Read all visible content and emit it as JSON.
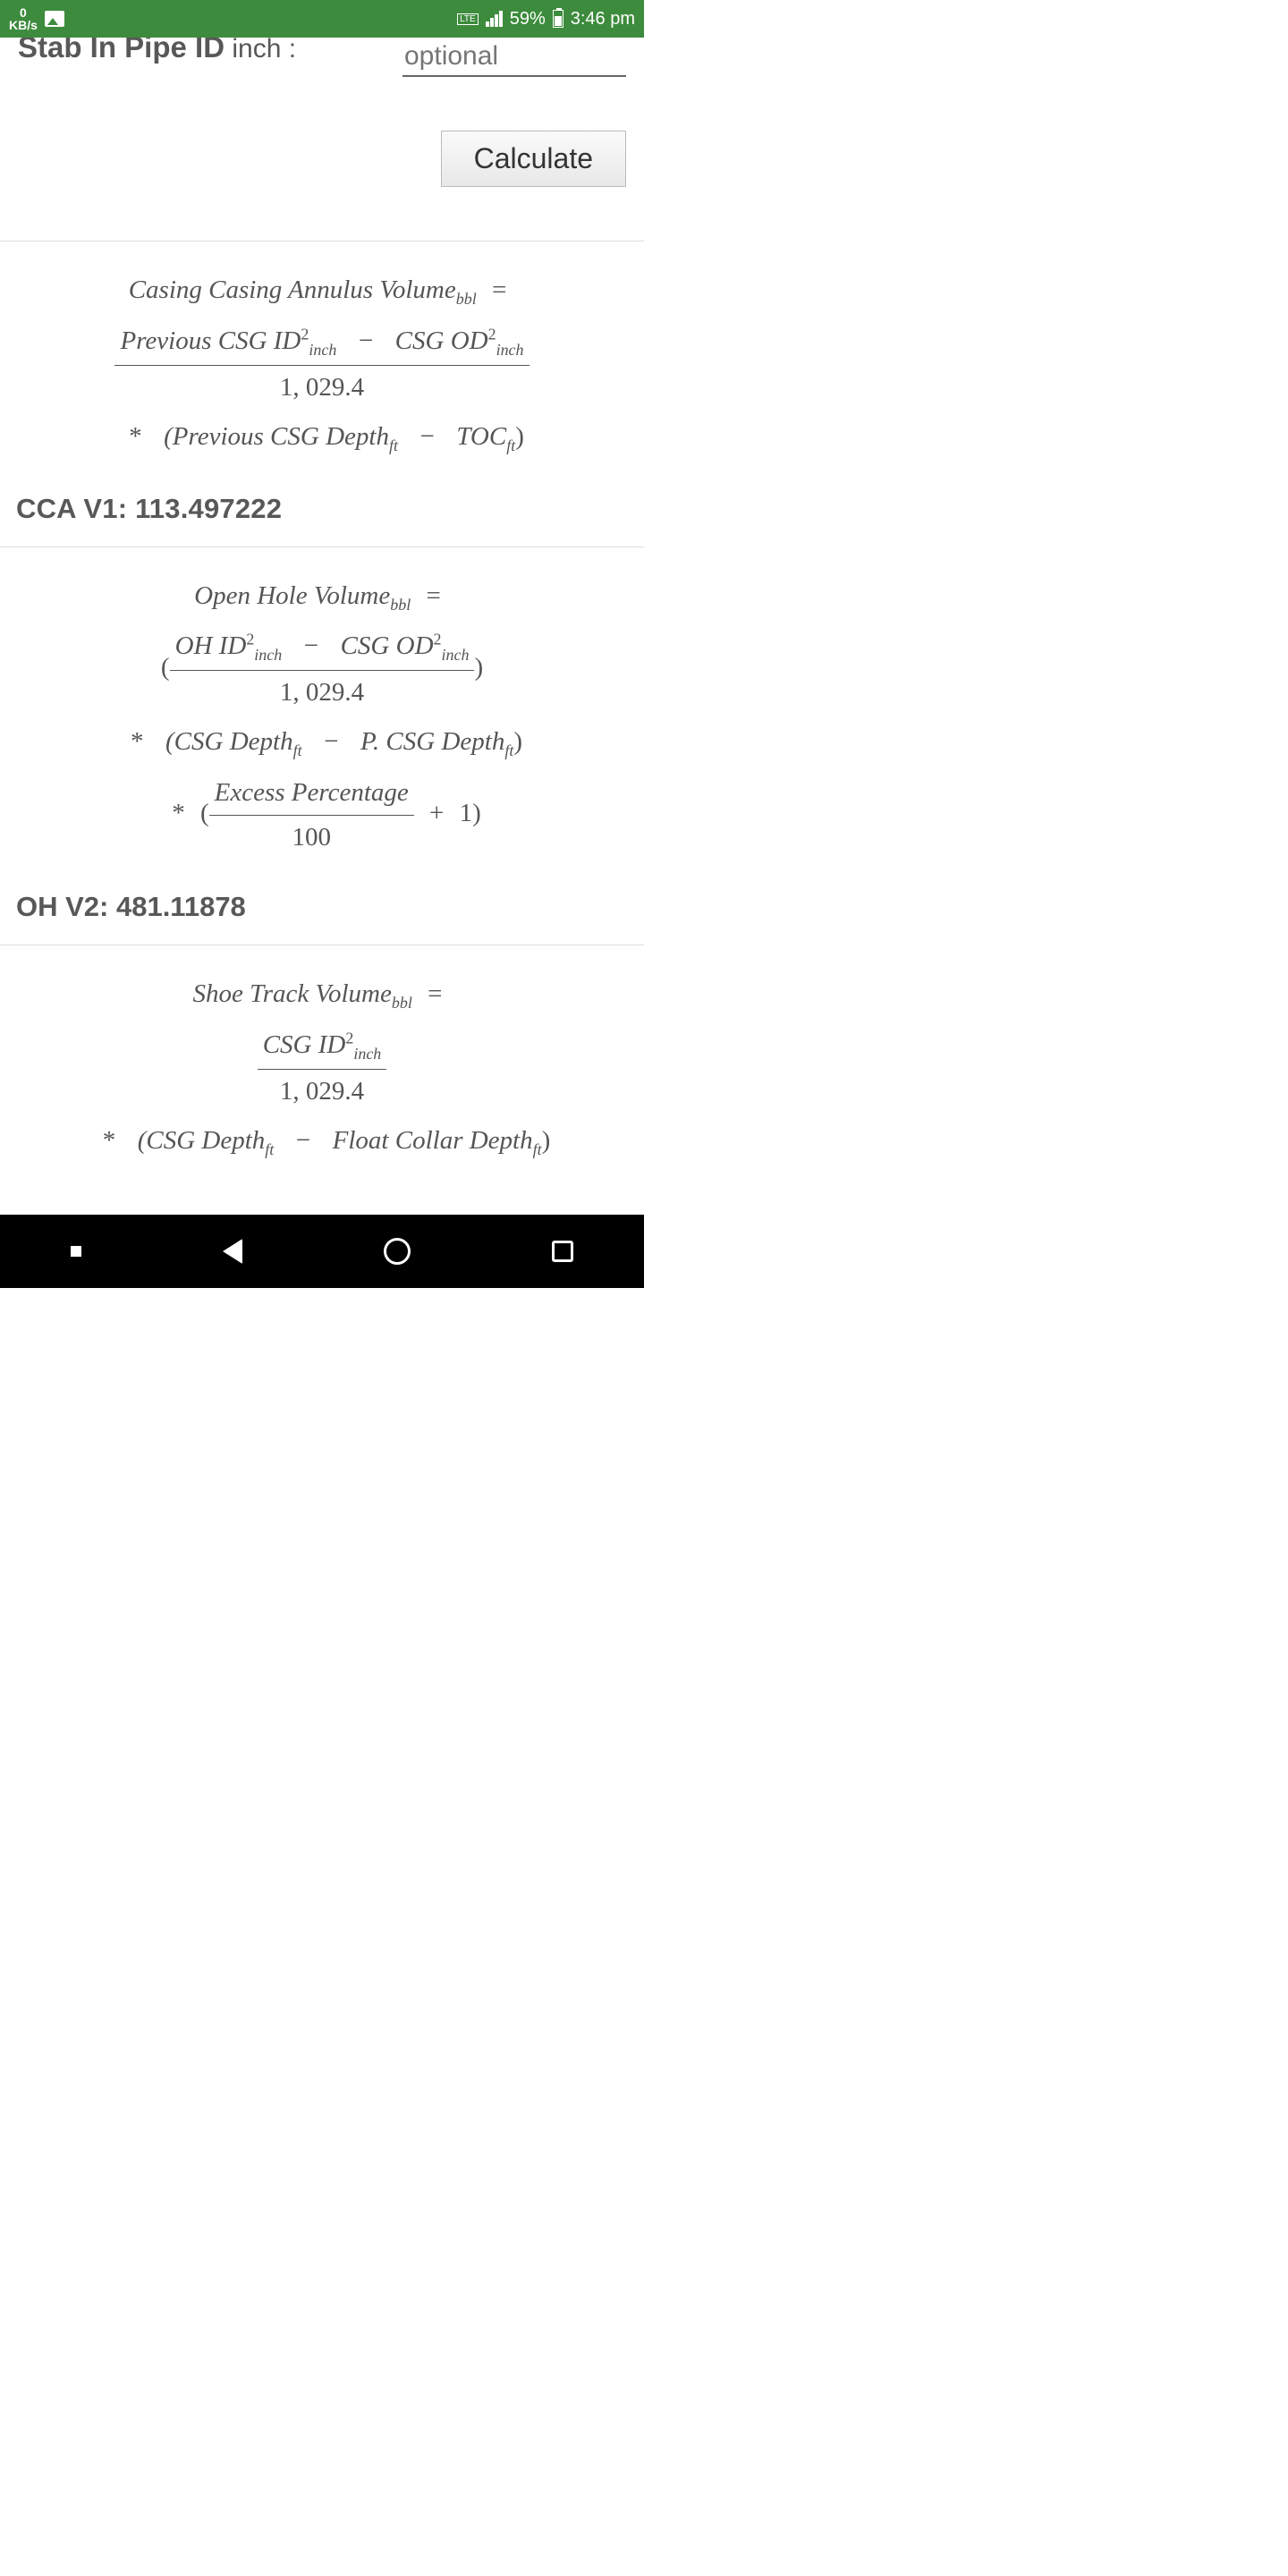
{
  "status": {
    "kbs_top": "0",
    "kbs_bottom": "KB/s",
    "lte": "LTE",
    "battery_pct": "59%",
    "time": "3:46 pm"
  },
  "form": {
    "stab_label": "Stab In Pipe ID",
    "stab_unit": " inch :",
    "placeholder": "optional",
    "calculate": "Calculate"
  },
  "f1": {
    "title_a": "Casing Casing Annulus Volume",
    "title_sub": "bbl",
    "num_a": "Previous CSG ID",
    "num_a_sub": "inch",
    "num_b": "CSG OD",
    "num_b_sub": "inch",
    "den": "1, 029.4",
    "l2a": "(Previous CSG Depth",
    "l2a_sub": "ft",
    "l2b": "TOC",
    "l2b_sub": "ft",
    "result": "CCA V1: 113.497222"
  },
  "f2": {
    "title_a": "Open Hole Volume",
    "title_sub": "bbl",
    "num_a": "OH ID",
    "num_a_sub": "inch",
    "num_b": "CSG OD",
    "num_b_sub": "inch",
    "den": "1, 029.4",
    "l2a": "(CSG Depth",
    "l2a_sub": "ft",
    "l2b": "P. CSG Depth",
    "l2b_sub": "ft",
    "l3a": "Excess Percentage",
    "l3b": "100",
    "result": "OH V2: 481.11878"
  },
  "f3": {
    "title_a": "Shoe Track Volume",
    "title_sub": "bbl",
    "num_a": "CSG ID",
    "num_a_sub": "inch",
    "den": "1, 029.4",
    "l2a": "(CSG Depth",
    "l2a_sub": "ft",
    "l2b": "Float Collar Depth",
    "l2b_sub": "ft"
  }
}
